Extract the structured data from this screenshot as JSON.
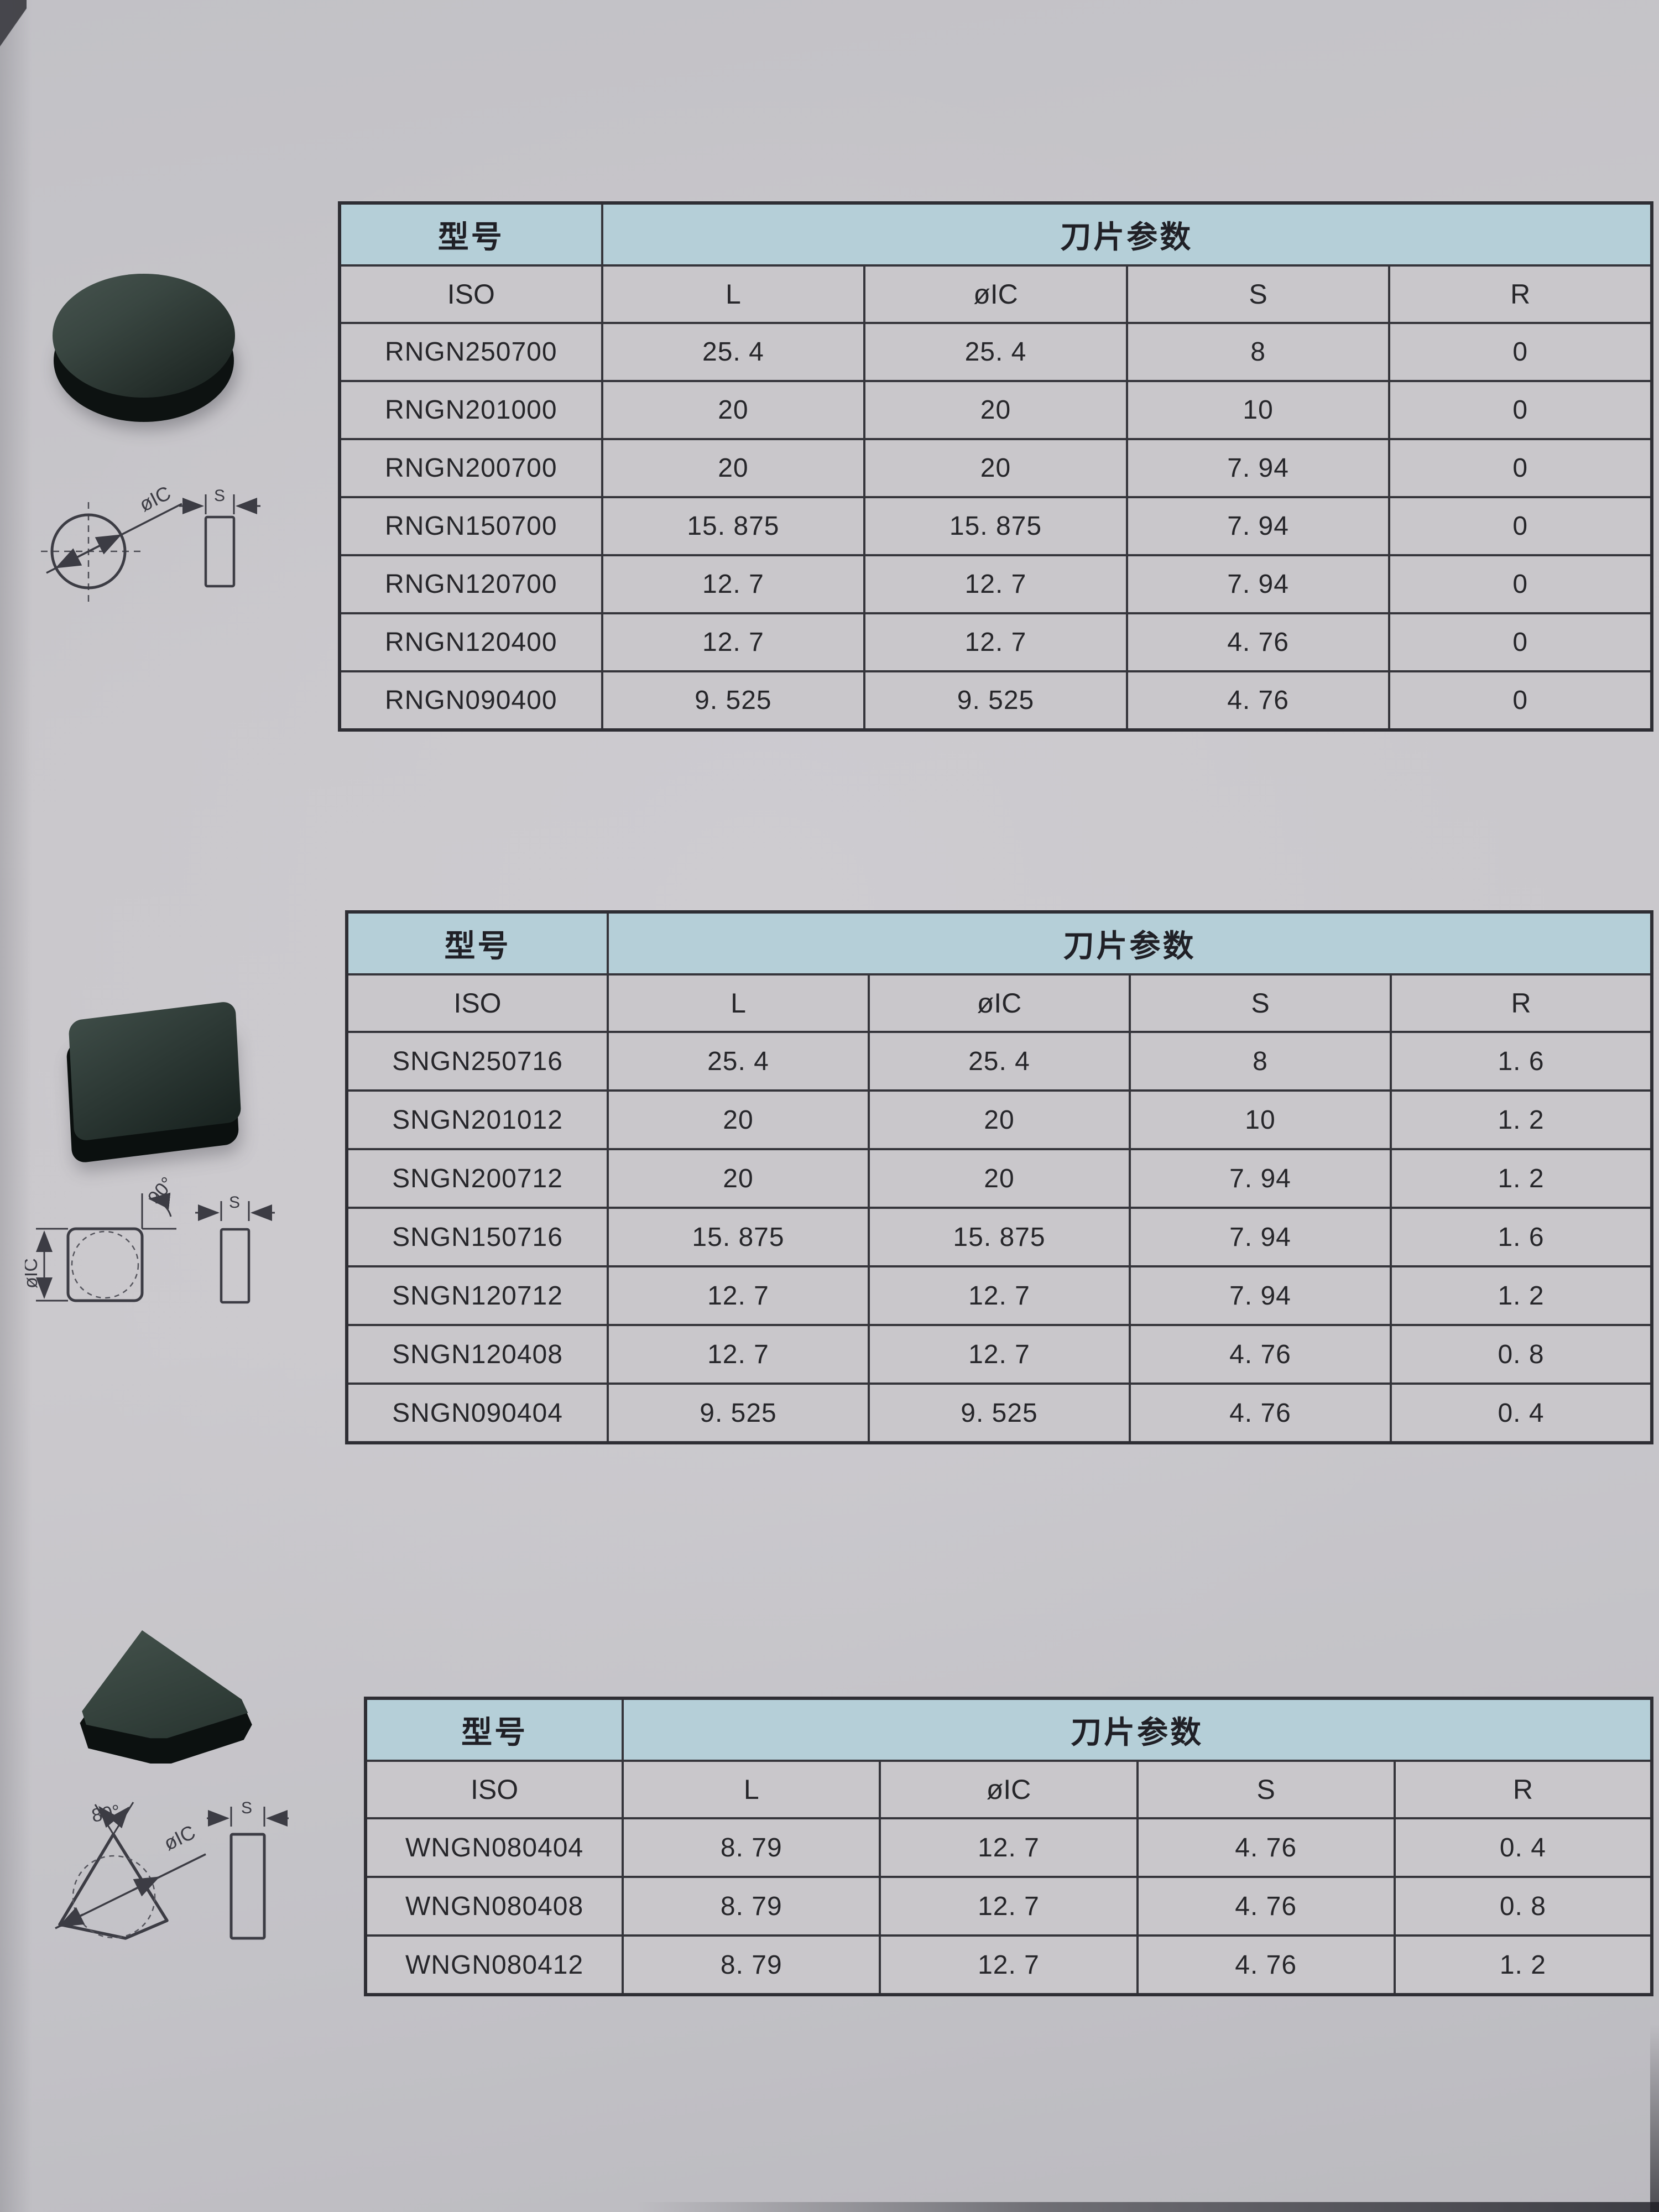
{
  "colors": {
    "page_background": "#c6c4c9",
    "table_header_fill": "#b5cfd8",
    "table_line": "#35353b",
    "text": "#26262a",
    "insert_top_face": "#34423d",
    "insert_side_face": "#0d1211"
  },
  "tables": [
    {
      "series": "RNGN",
      "model_header": "型号",
      "params_header": "刀片参数",
      "columns": [
        "ISO",
        "L",
        "øIC",
        "S",
        "R"
      ],
      "rows": [
        [
          "RNGN250700",
          "25. 4",
          "25. 4",
          "8",
          "0"
        ],
        [
          "RNGN201000",
          "20",
          "20",
          "10",
          "0"
        ],
        [
          "RNGN200700",
          "20",
          "20",
          "7. 94",
          "0"
        ],
        [
          "RNGN150700",
          "15. 875",
          "15. 875",
          "7. 94",
          "0"
        ],
        [
          "RNGN120700",
          "12. 7",
          "12. 7",
          "7. 94",
          "0"
        ],
        [
          "RNGN120400",
          "12. 7",
          "12. 7",
          "4. 76",
          "0"
        ],
        [
          "RNGN090400",
          "9. 525",
          "9. 525",
          "4. 76",
          "0"
        ]
      ]
    },
    {
      "series": "SNGN",
      "model_header": "型号",
      "params_header": "刀片参数",
      "columns": [
        "ISO",
        "L",
        "øIC",
        "S",
        "R"
      ],
      "rows": [
        [
          "SNGN250716",
          "25. 4",
          "25. 4",
          "8",
          "1. 6"
        ],
        [
          "SNGN201012",
          "20",
          "20",
          "10",
          "1. 2"
        ],
        [
          "SNGN200712",
          "20",
          "20",
          "7. 94",
          "1. 2"
        ],
        [
          "SNGN150716",
          "15. 875",
          "15. 875",
          "7. 94",
          "1. 6"
        ],
        [
          "SNGN120712",
          "12. 7",
          "12. 7",
          "7. 94",
          "1. 2"
        ],
        [
          "SNGN120408",
          "12. 7",
          "12. 7",
          "4. 76",
          "0. 8"
        ],
        [
          "SNGN090404",
          "9. 525",
          "9. 525",
          "4. 76",
          "0. 4"
        ]
      ]
    },
    {
      "series": "WNGN",
      "model_header": "型号",
      "params_header": "刀片参数",
      "columns": [
        "ISO",
        "L",
        "øIC",
        "S",
        "R"
      ],
      "rows": [
        [
          "WNGN080404",
          "8. 79",
          "12. 7",
          "4. 76",
          "0. 4"
        ],
        [
          "WNGN080408",
          "8. 79",
          "12. 7",
          "4. 76",
          "0. 8"
        ],
        [
          "WNGN080412",
          "8. 79",
          "12. 7",
          "4. 76",
          "1. 2"
        ]
      ]
    }
  ],
  "diagrams": {
    "round": {
      "diameter_label": "øIC",
      "thickness_label": "S"
    },
    "square": {
      "diameter_label": "øIC",
      "thickness_label": "S",
      "corner_angle_label": "90°"
    },
    "trigon": {
      "diameter_label": "øIC",
      "thickness_label": "S",
      "nose_angle_label": "80°"
    }
  }
}
